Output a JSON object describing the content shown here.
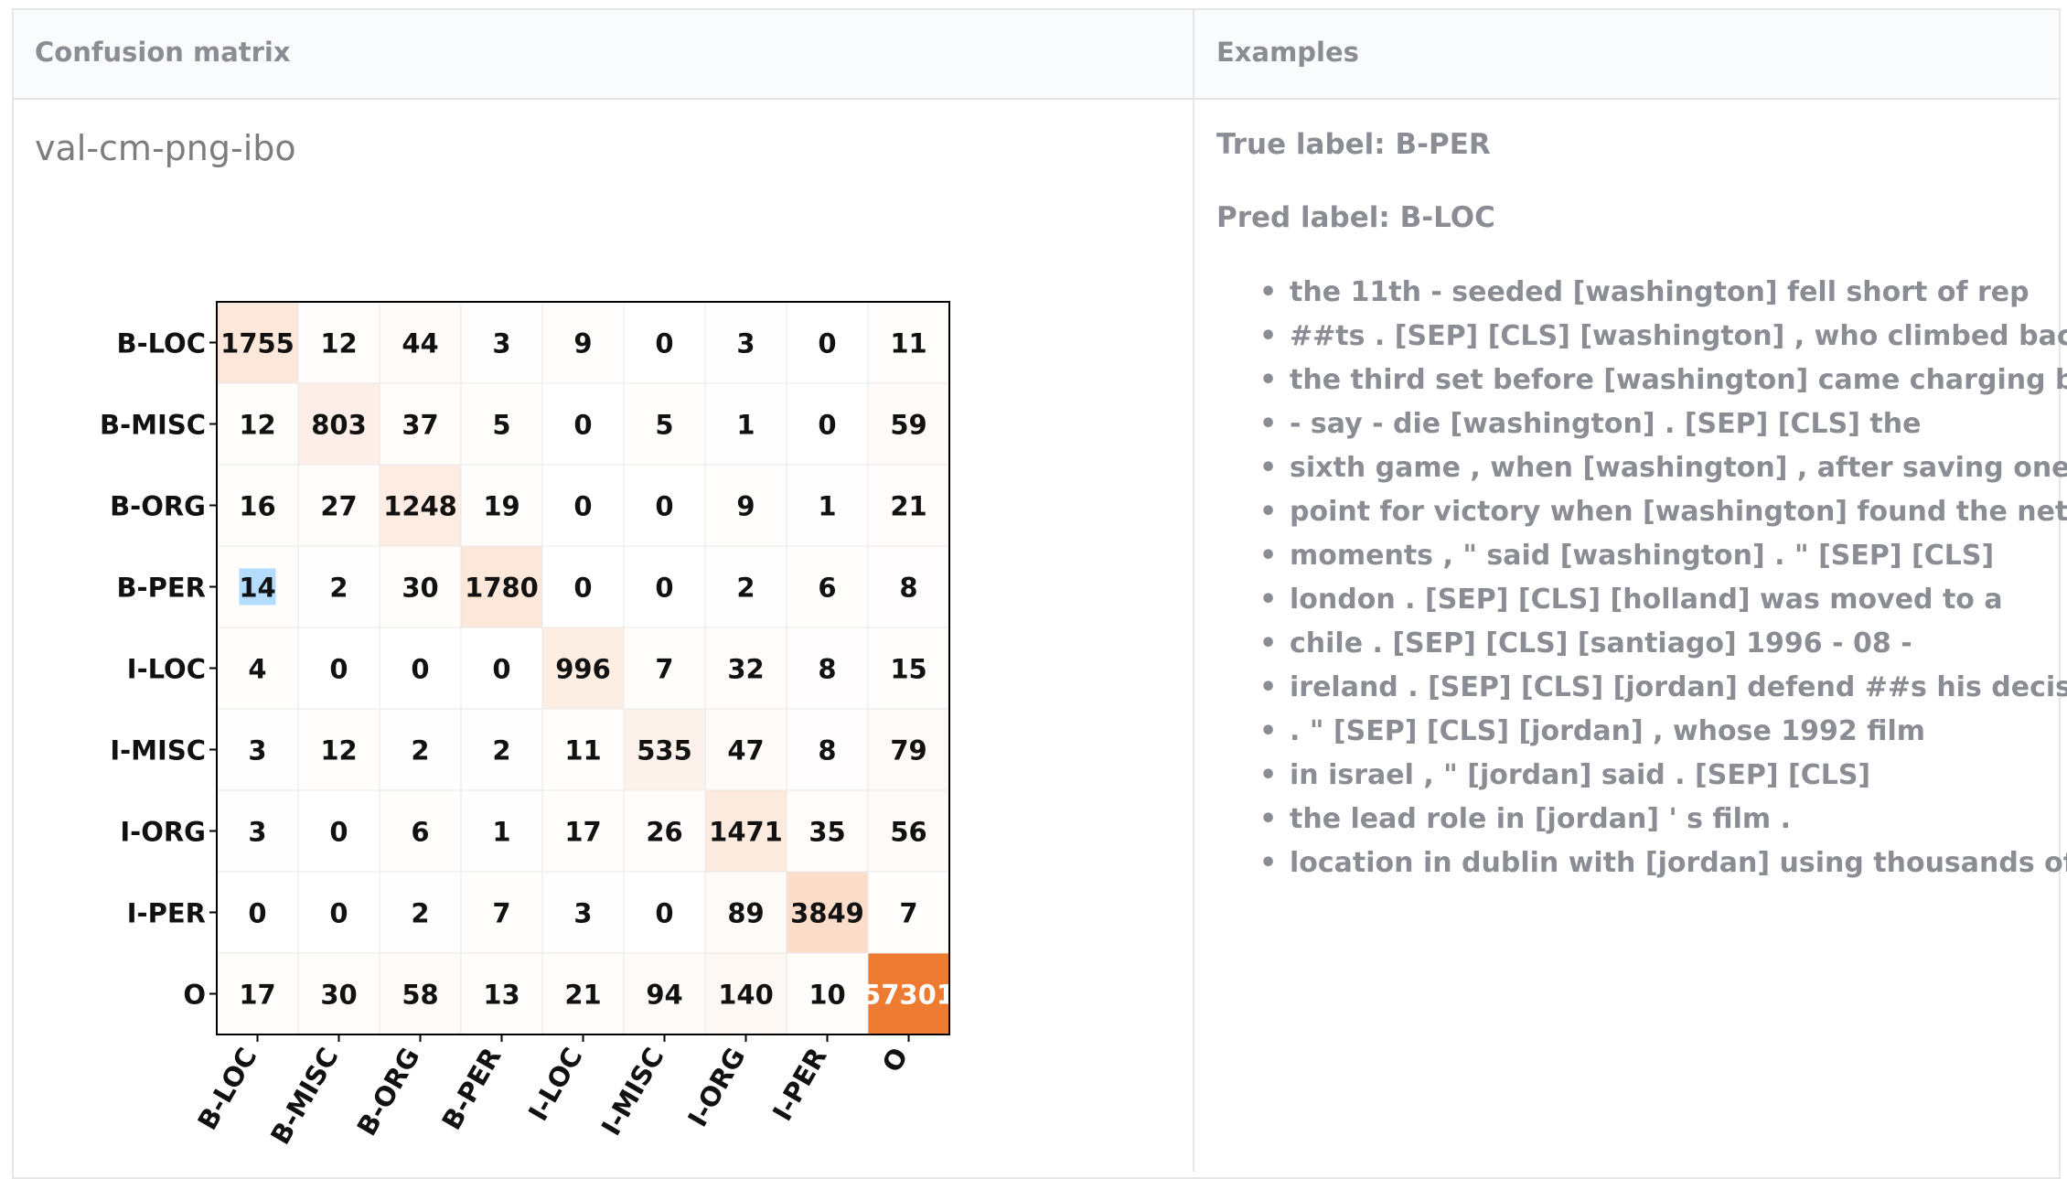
{
  "headers": {
    "confusion": "Confusion matrix",
    "examples": "Examples"
  },
  "panel_title": "val-cm-png-ibo",
  "true_label": "True label: B-PER",
  "pred_label": "Pred label: B-LOC",
  "examples": [
    "the 11th - seeded [washington] fell short of rep",
    "##ts . [SEP] [CLS] [washington] , who climbed back",
    "the third set before [washington] came charging back .",
    "- say - die [washington] . [SEP] [CLS] the",
    "sixth game , when [washington] , after saving one",
    "point for victory when [washington] found the net with",
    "moments , \" said [washington] . \" [SEP] [CLS]",
    "london . [SEP] [CLS] [holland] was moved to a",
    "chile . [SEP] [CLS] [santiago] 1996 - 08 -",
    "ireland . [SEP] [CLS] [jordan] defend ##s his decision",
    ". \" [SEP] [CLS] [jordan] , whose 1992 film",
    "in israel , \" [jordan] said . [SEP] [CLS]",
    "the lead role in [jordan] ' s film .",
    "location in dublin with [jordan] using thousands of its"
  ],
  "chart_data": {
    "type": "heatmap",
    "title": "",
    "xlabel": "",
    "ylabel": "",
    "rows": [
      "B-LOC",
      "B-MISC",
      "B-ORG",
      "B-PER",
      "I-LOC",
      "I-MISC",
      "I-ORG",
      "I-PER",
      "O"
    ],
    "cols": [
      "B-LOC",
      "B-MISC",
      "B-ORG",
      "B-PER",
      "I-LOC",
      "I-MISC",
      "I-ORG",
      "I-PER",
      "O"
    ],
    "values": [
      [
        1755,
        12,
        44,
        3,
        9,
        0,
        3,
        0,
        11
      ],
      [
        12,
        803,
        37,
        5,
        0,
        5,
        1,
        0,
        59
      ],
      [
        16,
        27,
        1248,
        19,
        0,
        0,
        9,
        1,
        21
      ],
      [
        14,
        2,
        30,
        1780,
        0,
        0,
        2,
        6,
        8
      ],
      [
        4,
        0,
        0,
        0,
        996,
        7,
        32,
        8,
        15
      ],
      [
        3,
        12,
        2,
        2,
        11,
        535,
        47,
        8,
        79
      ],
      [
        3,
        0,
        6,
        1,
        17,
        26,
        1471,
        35,
        56
      ],
      [
        0,
        0,
        2,
        7,
        3,
        0,
        89,
        3849,
        7
      ],
      [
        17,
        30,
        58,
        13,
        21,
        94,
        140,
        10,
        57301
      ]
    ],
    "colormap_low": "#ffffff",
    "colormap_high": "#ee7b32",
    "highlight": {
      "row": 3,
      "col": 0,
      "color": "#b3dcff"
    },
    "grid": true
  }
}
